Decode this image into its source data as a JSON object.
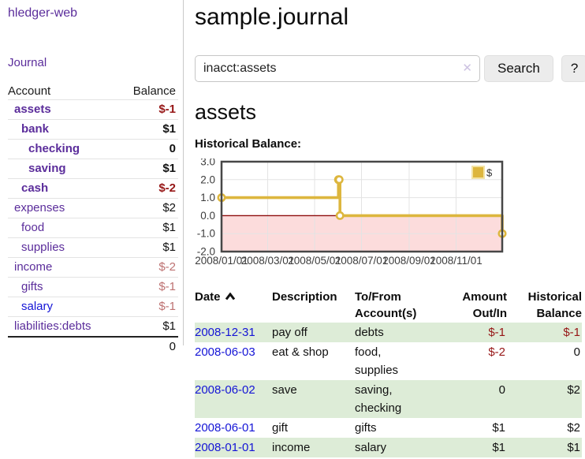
{
  "app": {
    "title": "hledger-web"
  },
  "colors": {
    "accent_purple": "#5b2d9b",
    "link_blue": "#1414d6",
    "negative_strong": "#961616",
    "negative_soft": "#bd7171",
    "row_green": "#ddecd7"
  },
  "icons": {
    "clear_search": "✕",
    "sort_ascending": "chevron-up"
  },
  "sidebar": {
    "nav_journal": "Journal",
    "accounts": {
      "header_account": "Account",
      "header_balance": "Balance",
      "rows": [
        {
          "name": "assets",
          "balance": "$-1"
        },
        {
          "name": "bank",
          "balance": "$1"
        },
        {
          "name": "checking",
          "balance": "0"
        },
        {
          "name": "saving",
          "balance": "$1"
        },
        {
          "name": "cash",
          "balance": "$-2"
        },
        {
          "name": "expenses",
          "balance": "$2"
        },
        {
          "name": "food",
          "balance": "$1"
        },
        {
          "name": "supplies",
          "balance": "$1"
        },
        {
          "name": "income",
          "balance": "$-2"
        },
        {
          "name": "gifts",
          "balance": "$-1"
        },
        {
          "name": "salary",
          "balance": "$-1"
        },
        {
          "name": "liabilities:debts",
          "balance": "$1"
        }
      ],
      "total": "0"
    }
  },
  "main": {
    "title": "sample.journal",
    "search": {
      "value": "inacct:assets",
      "clear_icon": "✕",
      "button": "Search",
      "help_button": "?"
    },
    "heading": "assets",
    "chart_label": "Historical Balance:",
    "register": {
      "headers": {
        "date": "Date",
        "description": "Description",
        "tofrom_line1": "To/From",
        "tofrom_line2": "Account(s)",
        "amount_line1": "Amount",
        "amount_line2": "Out/In",
        "balance_line1": "Historical",
        "balance_line2": "Balance"
      },
      "rows": [
        {
          "date": "2008-12-31",
          "description": "pay off",
          "accounts": "debts",
          "amount": "$-1",
          "balance": "$-1"
        },
        {
          "date": "2008-06-03",
          "description": "eat & shop",
          "accounts": "food, supplies",
          "amount": "$-2",
          "balance": "0"
        },
        {
          "date": "2008-06-02",
          "description": "save",
          "accounts": "saving, checking",
          "amount": "0",
          "balance": "$2"
        },
        {
          "date": "2008-06-01",
          "description": "gift",
          "accounts": "gifts",
          "amount": "$1",
          "balance": "$2"
        },
        {
          "date": "2008-01-01",
          "description": "income",
          "accounts": "salary",
          "amount": "$1",
          "balance": "$1"
        }
      ]
    }
  },
  "chart_data": {
    "type": "line",
    "title": "Historical Balance:",
    "step": true,
    "series": [
      {
        "name": "$",
        "points": [
          [
            "2008-01-01",
            1
          ],
          [
            "2008-06-01",
            2
          ],
          [
            "2008-06-02",
            2
          ],
          [
            "2008-06-03",
            0
          ],
          [
            "2008-12-31",
            -1
          ]
        ]
      }
    ],
    "x_range": [
      "2008-01-01",
      "2008-12-31"
    ],
    "x_ticks": [
      {
        "date": "2008-01-01",
        "label": "2008/01/01"
      },
      {
        "date": "2008-03-01",
        "label": "2008/03/01"
      },
      {
        "date": "2008-05-01",
        "label": "2008/05/01"
      },
      {
        "date": "2008-07-01",
        "label": "2008/07/01"
      },
      {
        "date": "2008-09-01",
        "label": "2008/09/01"
      },
      {
        "date": "2008-11-01",
        "label": "2008/11/01"
      }
    ],
    "y_ticks": [
      "3.0",
      "2.0",
      "1.0",
      "0.0",
      "-1.0",
      "-2.0"
    ],
    "ylim": [
      -2,
      3
    ],
    "grid": true,
    "legend": {
      "label": "$",
      "position": "top-right"
    },
    "colors": {
      "line": "#ddb63e",
      "marker_fill": "#ffffff",
      "negative_region": "#fcdcdc",
      "zero_line": "#8f0e0e",
      "border": "#474747",
      "grid": "#e3e3e3",
      "legend_border": "#f3e3a4",
      "tick_text": "#3c3c3c"
    }
  }
}
